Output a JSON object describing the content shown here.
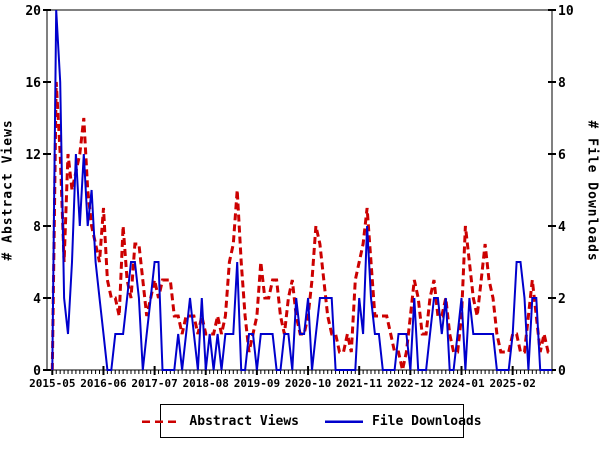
{
  "chart_data": {
    "type": "line",
    "frequency": "monthly",
    "n_points": 128,
    "x_start_label": "2015-05",
    "x_major_tick_months": [
      0,
      13,
      26,
      39,
      52,
      65,
      78,
      91,
      104,
      117
    ],
    "x_tick_labels": [
      "2015-05",
      "2016-06",
      "2017-07",
      "2018-08",
      "2019-09",
      "2020-10",
      "2021-11",
      "2022-12",
      "2024-01",
      "2025-02"
    ],
    "left_axis": {
      "label": "# Abstract Views",
      "ylim": [
        0,
        20
      ],
      "tick_labels": [
        "0",
        "4",
        "8",
        "12",
        "16",
        "20"
      ],
      "tick_values": [
        0,
        4,
        8,
        12,
        16,
        20
      ]
    },
    "right_axis": {
      "label": "# File Downloads",
      "ylim": [
        0,
        10
      ],
      "tick_labels": [
        "0",
        "2",
        "4",
        "6",
        "8",
        "10"
      ],
      "tick_values": [
        0,
        2,
        4,
        6,
        8,
        10
      ]
    },
    "grid": false,
    "legend_position": "bottom-center",
    "series": [
      {
        "name": "Abstract Views",
        "axis": "left",
        "color": "#cc0000",
        "style": "dashed",
        "values": [
          0,
          16,
          12,
          6,
          12,
          10,
          11,
          12,
          14,
          10,
          8,
          7,
          6,
          9,
          5,
          4,
          4,
          3,
          8,
          5,
          4,
          7,
          7,
          5,
          3,
          4,
          5,
          4,
          5,
          5,
          5,
          3,
          3,
          2,
          3,
          3,
          3,
          2,
          3,
          2,
          2,
          2,
          3,
          2,
          3,
          6,
          7,
          10,
          6,
          3,
          1,
          2,
          3,
          6,
          4,
          4,
          5,
          5,
          3,
          2,
          4,
          5,
          3,
          2,
          2,
          3,
          5,
          8,
          7,
          5,
          3,
          2,
          2,
          1,
          1,
          2,
          1,
          5,
          6,
          7,
          9,
          6,
          3,
          3,
          3,
          3,
          2,
          1,
          1,
          0,
          1,
          3,
          5,
          4,
          2,
          2,
          4,
          5,
          3,
          3,
          4,
          2,
          1,
          1,
          3,
          8,
          6,
          4,
          3,
          5,
          7,
          5,
          4,
          2,
          1,
          1,
          1,
          2,
          2,
          1,
          1,
          3,
          5,
          3,
          1,
          2,
          1,
          1
        ]
      },
      {
        "name": "File Downloads",
        "axis": "right",
        "color": "#0000cc",
        "style": "solid",
        "values": [
          0,
          10,
          8,
          2,
          1,
          3,
          6,
          4,
          6,
          4,
          5,
          3,
          2,
          1,
          0,
          0,
          1,
          1,
          1,
          2,
          3,
          3,
          2,
          0,
          1,
          2,
          3,
          3,
          0,
          0,
          0,
          0,
          1,
          0,
          1,
          2,
          1,
          0,
          2,
          0,
          1,
          0,
          1,
          0,
          1,
          1,
          1,
          3,
          0,
          0,
          1,
          1,
          0,
          1,
          1,
          1,
          1,
          0,
          0,
          1,
          1,
          0,
          2,
          1,
          1,
          2,
          0,
          1,
          2,
          2,
          2,
          2,
          0,
          0,
          0,
          0,
          0,
          0,
          2,
          1,
          4,
          2,
          1,
          1,
          0,
          0,
          0,
          0,
          1,
          1,
          1,
          0,
          2,
          0,
          0,
          0,
          1,
          2,
          2,
          1,
          2,
          0,
          0,
          1,
          2,
          0,
          2,
          1,
          1,
          1,
          1,
          1,
          1,
          0,
          0,
          0,
          0,
          1,
          3,
          3,
          2,
          0,
          2,
          2,
          0,
          0,
          0,
          0
        ]
      }
    ]
  },
  "legend": {
    "items": [
      {
        "label": "Abstract Views",
        "color": "#cc0000",
        "style": "dashed"
      },
      {
        "label": "File Downloads",
        "color": "#0000cc",
        "style": "solid"
      }
    ]
  },
  "colors": {
    "axis": "#000000",
    "background": "#ffffff",
    "text": "#000000"
  }
}
